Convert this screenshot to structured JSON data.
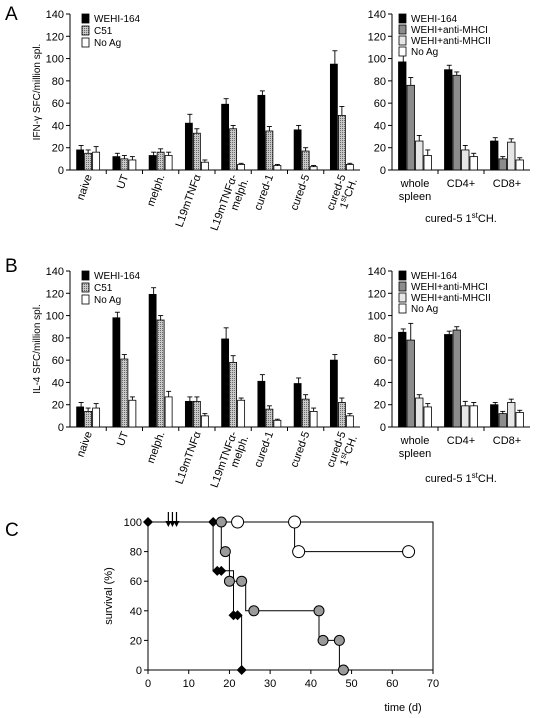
{
  "figure": {
    "letters": [
      "A",
      "B",
      "C"
    ]
  },
  "chart_data": [
    {
      "type": "bar",
      "panel": "A",
      "ylabel": "IFN-γ SFC/million spl.",
      "ylim": [
        0,
        140
      ],
      "yticks": [
        0,
        20,
        40,
        60,
        80,
        100,
        120,
        140
      ],
      "categories": [
        "naive",
        "UT",
        "melph.",
        "L19mTNFα",
        "L19mTNFα-melph.",
        "cured-1",
        "cured-5",
        "cured-5 1stCH."
      ],
      "series": [
        {
          "name": "WEHI-164",
          "values": [
            18,
            12,
            13,
            42,
            59,
            67,
            36,
            95
          ],
          "errors": [
            4,
            3,
            3,
            8,
            5,
            4,
            4,
            12
          ],
          "color": "#000000",
          "pattern": "solid"
        },
        {
          "name": "C51",
          "values": [
            15,
            10,
            16,
            33,
            37,
            35,
            17,
            49
          ],
          "errors": [
            3,
            3,
            3,
            4,
            3,
            4,
            3,
            8
          ],
          "color": "#9a9a9a",
          "pattern": "dots"
        },
        {
          "name": "No Ag",
          "values": [
            16,
            9,
            13,
            7,
            5,
            4,
            3,
            5
          ],
          "errors": [
            5,
            3,
            3,
            2,
            1,
            1,
            1,
            1
          ],
          "color": "#ffffff",
          "pattern": "open"
        }
      ]
    },
    {
      "type": "bar",
      "panel": "A-right",
      "ylim": [
        0,
        140
      ],
      "yticks": [
        0,
        20,
        40,
        60,
        80,
        100,
        120,
        140
      ],
      "categories": [
        "whole spleen",
        "CD4+",
        "CD8+"
      ],
      "footer": "cured-5 1stCH.",
      "series": [
        {
          "name": "WEHI-164",
          "values": [
            97,
            90,
            26
          ],
          "errors": [
            8,
            4,
            3
          ],
          "color": "#000000",
          "pattern": "solid"
        },
        {
          "name": "WEHI+anti-MHCI",
          "values": [
            76,
            85,
            10
          ],
          "errors": [
            7,
            3,
            2
          ],
          "color": "#8c8c8c",
          "pattern": "solid"
        },
        {
          "name": "WEHI+anti-MHCII",
          "values": [
            26,
            18,
            25
          ],
          "errors": [
            5,
            4,
            3
          ],
          "color": "#e6e6e6",
          "pattern": "solid"
        },
        {
          "name": "No Ag",
          "values": [
            13,
            12,
            9
          ],
          "errors": [
            5,
            3,
            2
          ],
          "color": "#ffffff",
          "pattern": "open"
        }
      ]
    },
    {
      "type": "bar",
      "panel": "B",
      "ylabel": "IL-4 SFC/million spl.",
      "ylim": [
        0,
        140
      ],
      "yticks": [
        0,
        20,
        40,
        60,
        80,
        100,
        120,
        140
      ],
      "categories": [
        "naive",
        "UT",
        "melph.",
        "L19mTNFα",
        "L19mTNFα-melph.",
        "cured-1",
        "cured-5",
        "cured-5 1stCH."
      ],
      "series": [
        {
          "name": "WEHI-164",
          "values": [
            18,
            98,
            119,
            23,
            79,
            41,
            39,
            60
          ],
          "errors": [
            4,
            5,
            6,
            4,
            10,
            6,
            5,
            5
          ],
          "color": "#000000",
          "pattern": "solid"
        },
        {
          "name": "C51",
          "values": [
            14,
            61,
            96,
            23,
            58,
            16,
            25,
            22
          ],
          "errors": [
            3,
            4,
            4,
            4,
            6,
            3,
            4,
            4
          ],
          "color": "#9a9a9a",
          "pattern": "dots"
        },
        {
          "name": "No Ag",
          "values": [
            17,
            24,
            27,
            10,
            24,
            6,
            14,
            10
          ],
          "errors": [
            4,
            3,
            5,
            2,
            2,
            1,
            3,
            2
          ],
          "color": "#ffffff",
          "pattern": "open"
        }
      ]
    },
    {
      "type": "bar",
      "panel": "B-right",
      "ylim": [
        0,
        140
      ],
      "yticks": [
        0,
        20,
        40,
        60,
        80,
        100,
        120,
        140
      ],
      "categories": [
        "whole spleen",
        "CD4+",
        "CD8+"
      ],
      "footer": "cured-5 1stCH.",
      "series": [
        {
          "name": "WEHI-164",
          "values": [
            85,
            83,
            20
          ],
          "errors": [
            3,
            3,
            2
          ],
          "color": "#000000",
          "pattern": "solid"
        },
        {
          "name": "WEHI+anti-MHCI",
          "values": [
            78,
            87,
            12
          ],
          "errors": [
            15,
            3,
            2
          ],
          "color": "#8c8c8c",
          "pattern": "solid"
        },
        {
          "name": "WEHI+anti-MHCII",
          "values": [
            26,
            19,
            22
          ],
          "errors": [
            3,
            4,
            3
          ],
          "color": "#e6e6e6",
          "pattern": "solid"
        },
        {
          "name": "No Ag",
          "values": [
            18,
            19,
            13
          ],
          "errors": [
            3,
            3,
            2
          ],
          "color": "#ffffff",
          "pattern": "open"
        }
      ]
    },
    {
      "type": "line",
      "panel": "C",
      "xlabel": "time (d)",
      "ylabel": "survival (%)",
      "xlim": [
        0,
        70
      ],
      "ylim": [
        0,
        100
      ],
      "xticks": [
        0,
        10,
        20,
        30,
        40,
        50,
        60,
        70
      ],
      "yticks": [
        0,
        20,
        40,
        60,
        80,
        100
      ],
      "arrows_at_days": [
        5,
        6,
        7
      ],
      "series": [
        {
          "marker": "diamond-black",
          "color": "#000000",
          "steps": [
            [
              0,
              100
            ],
            [
              16,
              100
            ],
            [
              16,
              67
            ],
            [
              18,
              67
            ],
            [
              18,
              67
            ],
            [
              21,
              67
            ],
            [
              21,
              37
            ],
            [
              22,
              37
            ],
            [
              22,
              37
            ],
            [
              23,
              37
            ],
            [
              23,
              0
            ]
          ],
          "points": [
            [
              0,
              100
            ],
            [
              16,
              100
            ],
            [
              17,
              67
            ],
            [
              18,
              67
            ],
            [
              21,
              37
            ],
            [
              22,
              37
            ],
            [
              23,
              0
            ]
          ]
        },
        {
          "marker": "circle-grey",
          "color": "#9a9a9a",
          "steps": [
            [
              0,
              100
            ],
            [
              18,
              100
            ],
            [
              18,
              80
            ],
            [
              20,
              80
            ],
            [
              20,
              60
            ],
            [
              24,
              60
            ],
            [
              24,
              40
            ],
            [
              42,
              40
            ],
            [
              42,
              20
            ],
            [
              47,
              20
            ],
            [
              47,
              0
            ],
            [
              48,
              0
            ]
          ],
          "points": [
            [
              18,
              100
            ],
            [
              19,
              80
            ],
            [
              20,
              60
            ],
            [
              23,
              60
            ],
            [
              26,
              40
            ],
            [
              42,
              40
            ],
            [
              43,
              20
            ],
            [
              47,
              20
            ],
            [
              48,
              0
            ]
          ]
        },
        {
          "marker": "circle-white",
          "color": "#000000",
          "steps": [
            [
              0,
              100
            ],
            [
              36,
              100
            ],
            [
              36,
              80
            ],
            [
              64,
              80
            ]
          ],
          "points": [
            [
              22,
              100
            ],
            [
              36,
              100
            ],
            [
              37,
              80
            ],
            [
              64,
              80
            ]
          ]
        }
      ]
    }
  ]
}
